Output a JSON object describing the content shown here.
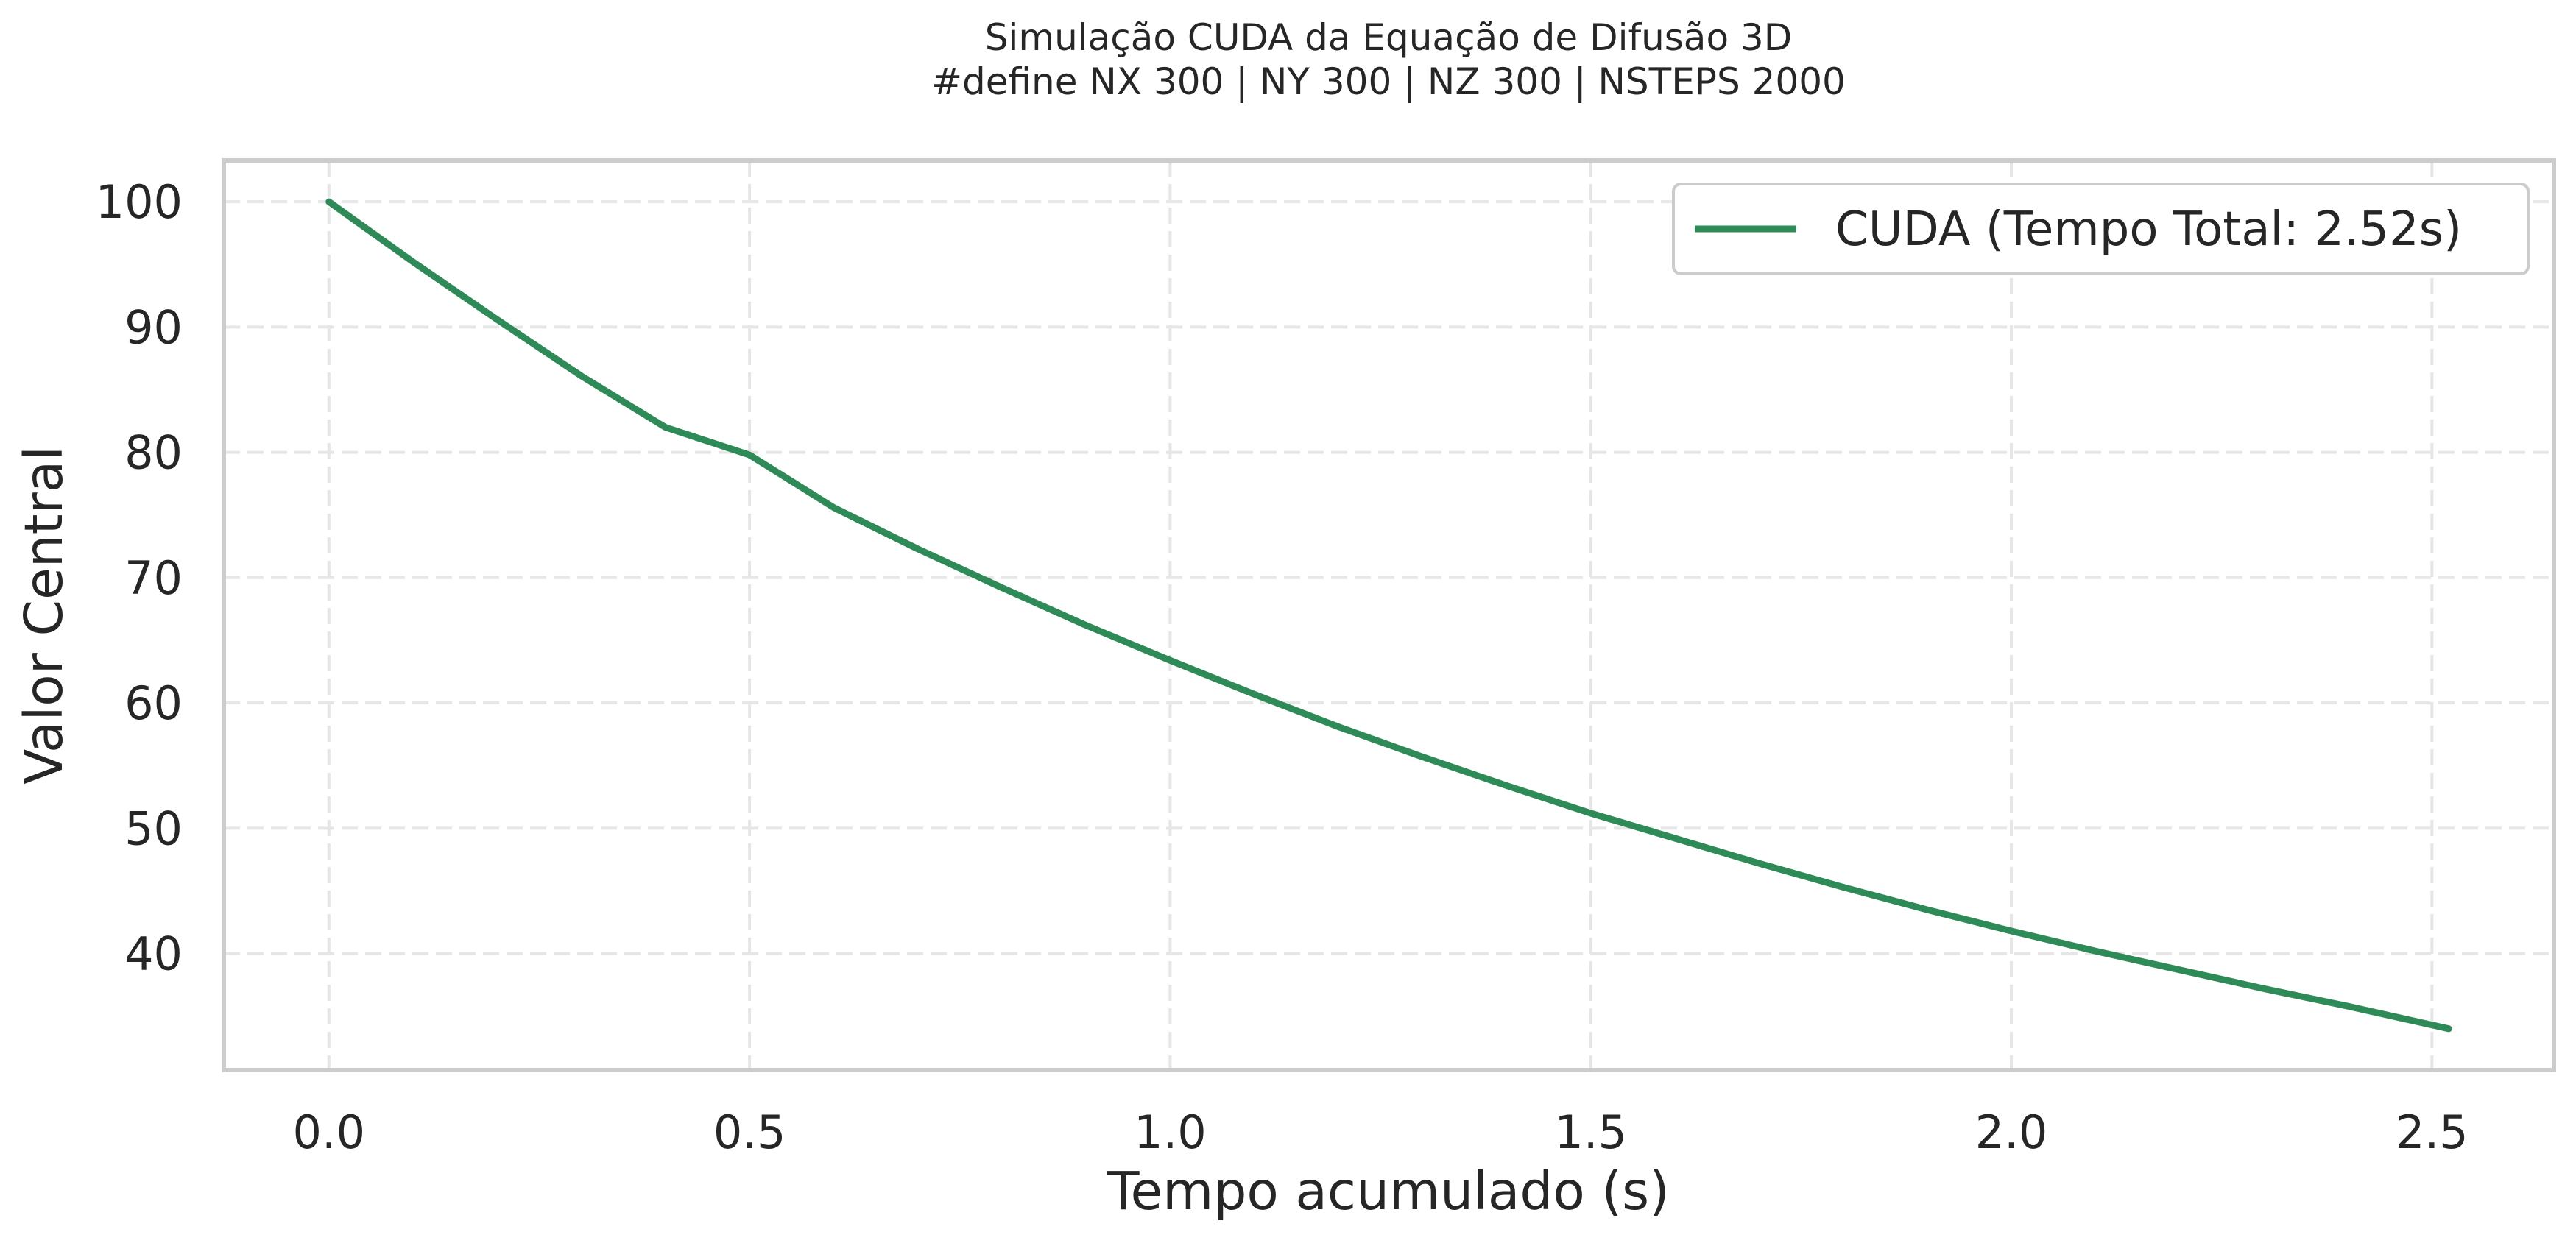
{
  "chart_data": {
    "type": "line",
    "title": "Simulação CUDA da Equação de Difusão 3D",
    "subtitle": "#define NX 300 | NY 300 | NZ 300 | NSTEPS 2000",
    "xlabel": "Tempo acumulado (s)",
    "ylabel": "Valor Central",
    "xlim": [
      -0.125,
      2.645
    ],
    "ylim": [
      30.7,
      103.3
    ],
    "xticks": [
      0.0,
      0.5,
      1.0,
      1.5,
      2.0,
      2.5
    ],
    "xtick_labels": [
      "0.0",
      "0.5",
      "1.0",
      "1.5",
      "2.0",
      "2.5"
    ],
    "yticks": [
      40,
      50,
      60,
      70,
      80,
      90,
      100
    ],
    "ytick_labels": [
      "40",
      "50",
      "60",
      "70",
      "80",
      "90",
      "100"
    ],
    "grid": true,
    "legend_position": "top-right",
    "series": [
      {
        "name": "CUDA (Tempo Total: 2.52s)",
        "color": "#2e8b57",
        "x": [
          0.0,
          0.1,
          0.2,
          0.3,
          0.4,
          0.5,
          0.6,
          0.7,
          0.8,
          0.9,
          1.0,
          1.1,
          1.2,
          1.3,
          1.4,
          1.5,
          1.6,
          1.7,
          1.8,
          1.9,
          2.0,
          2.1,
          2.2,
          2.3,
          2.4,
          2.52
        ],
        "y": [
          100.0,
          95.2,
          90.6,
          86.1,
          82.0,
          79.8,
          75.6,
          72.3,
          69.2,
          66.2,
          63.4,
          60.7,
          58.1,
          55.7,
          53.4,
          51.2,
          49.2,
          47.2,
          45.3,
          43.5,
          41.8,
          40.2,
          38.7,
          37.2,
          35.8,
          34.0
        ]
      }
    ]
  }
}
